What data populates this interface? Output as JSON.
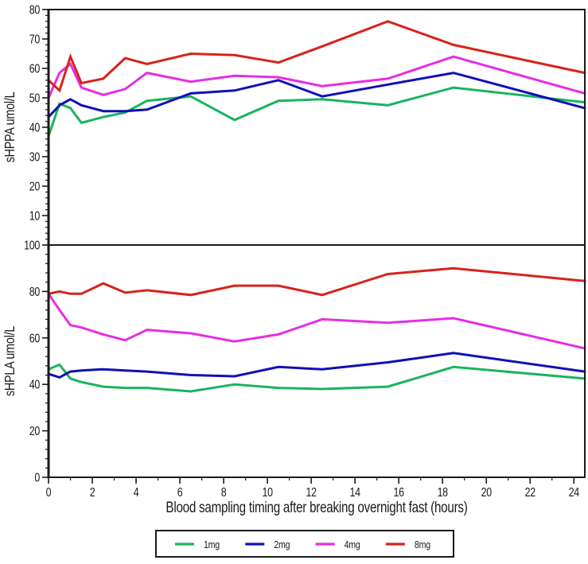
{
  "figure": {
    "xlabel": "Blood sampling timing after breaking overnight fast (hours)",
    "background": "#ffffff",
    "axis_color": "#1a1a1a"
  },
  "chart_data": [
    {
      "type": "line",
      "panel": "top",
      "title": "",
      "ylabel": "sHPPA umol/L",
      "ylim": [
        0,
        80
      ],
      "yticks": [
        10,
        20,
        30,
        40,
        50,
        60,
        70,
        80
      ],
      "y_minor_step": 2,
      "xlim": [
        0,
        24.5
      ],
      "grid": false,
      "x": [
        0,
        0.5,
        1,
        1.5,
        2.5,
        3.5,
        4.5,
        6.5,
        8.5,
        10.5,
        12.5,
        15.5,
        18.5,
        24.5
      ],
      "series": [
        {
          "name": "1mg",
          "color": "#19b45f",
          "values": [
            37,
            48,
            46.5,
            41.5,
            43.5,
            45,
            49,
            50.5,
            42.5,
            49,
            49.5,
            47.5,
            53.5,
            48.5
          ]
        },
        {
          "name": "2mg",
          "color": "#1010b8",
          "values": [
            43.5,
            47.5,
            49.5,
            47.5,
            45.5,
            45.5,
            46,
            51.5,
            52.5,
            56,
            50.5,
            54.5,
            58.5,
            46.5
          ]
        },
        {
          "name": "4mg",
          "color": "#e62de6",
          "values": [
            50,
            58.5,
            61.5,
            53.5,
            51,
            53,
            58.5,
            55.5,
            57.5,
            57,
            54,
            56.5,
            64,
            51.5
          ]
        },
        {
          "name": "8mg",
          "color": "#d72319",
          "values": [
            56,
            52.5,
            64,
            55,
            56.5,
            63.5,
            61.5,
            65,
            64.5,
            62,
            67.5,
            76,
            68,
            58.5
          ]
        }
      ]
    },
    {
      "type": "line",
      "panel": "bottom",
      "title": "",
      "ylabel": "sHPLA umol/L",
      "ylim": [
        0,
        100
      ],
      "yticks": [
        0,
        20,
        40,
        60,
        80,
        100
      ],
      "y_minor_step": 4,
      "xlim": [
        0,
        24.5
      ],
      "grid": false,
      "x": [
        0,
        0.5,
        1,
        1.5,
        2.5,
        3.5,
        4.5,
        6.5,
        8.5,
        10.5,
        12.5,
        15.5,
        18.5,
        24.5
      ],
      "series": [
        {
          "name": "1mg",
          "color": "#19b45f",
          "values": [
            46.5,
            48.5,
            42.5,
            41,
            39,
            38.5,
            38.5,
            37,
            40,
            38.5,
            38,
            39,
            47.5,
            42.5
          ]
        },
        {
          "name": "2mg",
          "color": "#1010b8",
          "values": [
            44.5,
            43,
            45.5,
            46,
            46.5,
            46,
            45.5,
            44,
            43.5,
            47.5,
            46.5,
            49.5,
            53.5,
            45.5
          ]
        },
        {
          "name": "4mg",
          "color": "#e62de6",
          "values": [
            79,
            72,
            65.5,
            64.5,
            61.5,
            59,
            63.5,
            62,
            58.5,
            61.5,
            68,
            66.5,
            68.5,
            55.5
          ]
        },
        {
          "name": "8mg",
          "color": "#d72319",
          "values": [
            79,
            80,
            79,
            79,
            83.5,
            79.5,
            80.5,
            78.5,
            82.5,
            82.5,
            78.5,
            87.5,
            90,
            84.5
          ]
        }
      ]
    }
  ],
  "x_axis": {
    "ticks": [
      0,
      2,
      4,
      6,
      8,
      10,
      12,
      14,
      16,
      18,
      20,
      22,
      24
    ],
    "minor_step": 1
  },
  "legend": {
    "position": "bottom",
    "items": [
      {
        "label": "1mg",
        "color": "#19b45f"
      },
      {
        "label": "2mg",
        "color": "#1010b8"
      },
      {
        "label": "4mg",
        "color": "#e62de6"
      },
      {
        "label": "8mg",
        "color": "#d72319"
      }
    ]
  }
}
